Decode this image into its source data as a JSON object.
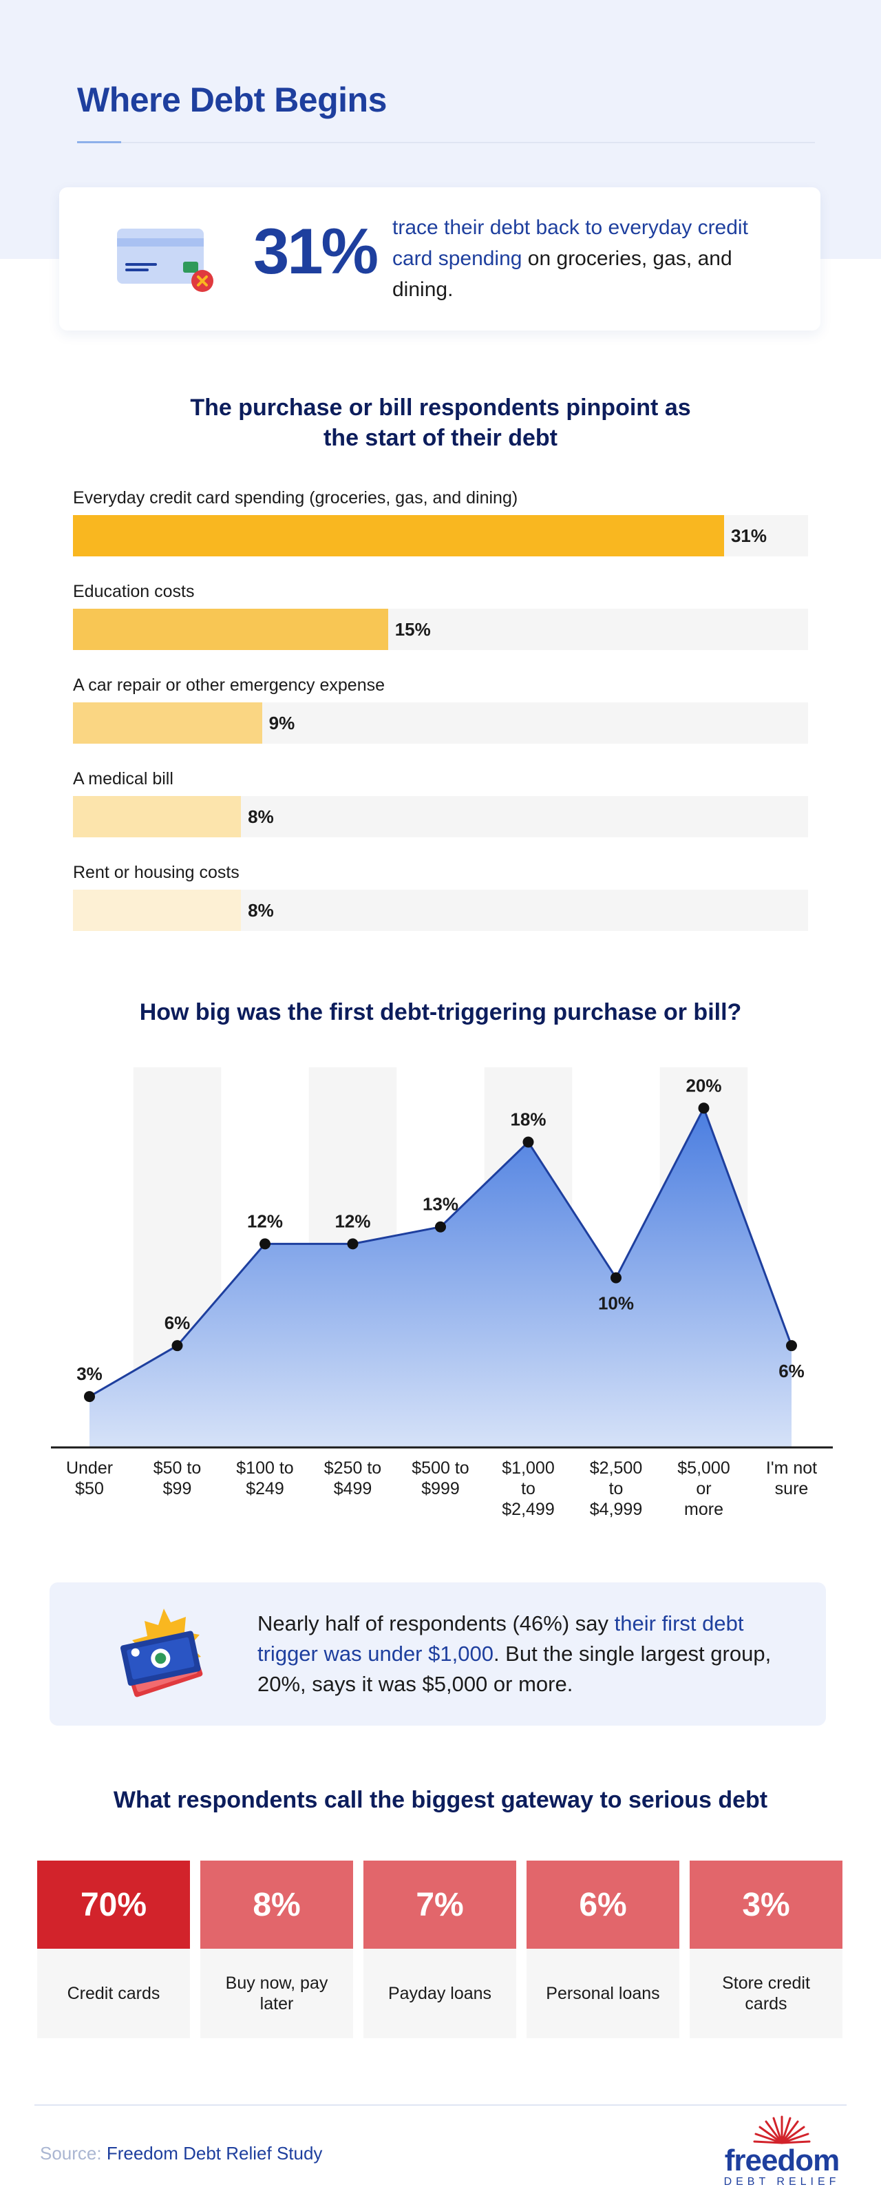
{
  "page": {
    "title": "Where Debt Begins"
  },
  "highlight": {
    "value": "31%",
    "text_accent": "trace their debt back to everyday credit card spending",
    "text_rest": " on groceries, gas, and dining.",
    "icon": "credit-card-icon"
  },
  "purchase_chart": {
    "title": "The purchase or bill respondents pinpoint as the start of their debt",
    "colors": [
      "#f9b720",
      "#f8c654",
      "#fad683",
      "#fce4ac",
      "#fdf0d4"
    ]
  },
  "size_chart": {
    "title": "How big was the first debt-triggering purchase or bill?",
    "colors": {
      "line": "#1e3f9e",
      "fill_top": "#4a7de0",
      "fill_bottom": "#d6e2f8"
    }
  },
  "callout": {
    "text_before": "Nearly half of respondents (46%) say ",
    "text_accent": "their first debt trigger was under $1,000",
    "text_after": ". But the single largest group, 20%, says it was $5,000 or more.",
    "icon": "money-bills-icon"
  },
  "gateway": {
    "title": "What respondents call the biggest gateway to serious debt",
    "tiles": [
      {
        "value": "70%",
        "label": "Credit cards"
      },
      {
        "value": "8%",
        "label": "Buy now, pay later"
      },
      {
        "value": "7%",
        "label": "Payday loans"
      },
      {
        "value": "6%",
        "label": "Personal loans"
      },
      {
        "value": "3%",
        "label": "Store credit cards"
      }
    ],
    "colors": {
      "primary": "#d2232b",
      "secondary": "#e2666b"
    }
  },
  "footer": {
    "source_prefix": "Source:",
    "source_name": "Freedom Debt Relief Study",
    "brand_name": "freedom",
    "brand_sub": "DEBT RELIEF",
    "brand_icon": "sunburst-logo-icon"
  },
  "chart_data": [
    {
      "type": "bar",
      "orientation": "horizontal",
      "title": "The purchase or bill respondents pinpoint as the start of their debt",
      "categories": [
        "Everyday credit card spending (groceries, gas, and dining)",
        "Education costs",
        "A car repair or other emergency expense",
        "A medical bill",
        "Rent or housing costs"
      ],
      "values": [
        31,
        15,
        9,
        8,
        8
      ],
      "value_labels": [
        "31%",
        "15%",
        "9%",
        "8%",
        "8%"
      ],
      "xlim": [
        0,
        35
      ]
    },
    {
      "type": "area",
      "title": "How big was the first debt-triggering purchase or bill?",
      "categories": [
        "Under $50",
        "$50 to $99",
        "$100 to $249",
        "$250 to $499",
        "$500 to $999",
        "$1,000 to $2,499",
        "$2,500 to $4,999",
        "$5,000 or more",
        "I'm not sure"
      ],
      "values": [
        3,
        6,
        12,
        12,
        13,
        18,
        10,
        20,
        6
      ],
      "value_labels": [
        "3%",
        "6%",
        "12%",
        "12%",
        "13%",
        "18%",
        "10%",
        "20%",
        "6%"
      ],
      "ylim": [
        0,
        22
      ],
      "grid": false
    }
  ]
}
